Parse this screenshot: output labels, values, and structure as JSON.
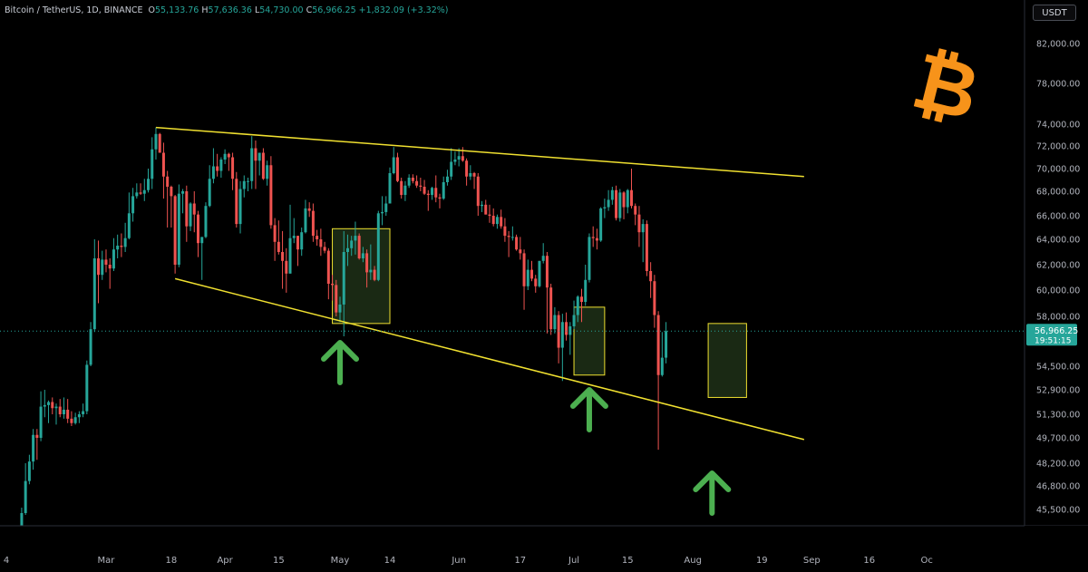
{
  "header": {
    "symbol": "Bitcoin / TetherUS",
    "interval": "1D",
    "exchange": "BINANCE",
    "open_label": "O",
    "open": "55,133.76",
    "high_label": "H",
    "high": "57,636.36",
    "low_label": "L",
    "low": "54,730.00",
    "close_label": "C",
    "close": "56,966.25",
    "change": "+1,832.09 (+3.32%)"
  },
  "unit_button": "USDT",
  "price_tag": {
    "price": "56,966.25",
    "countdown": "19:51:15"
  },
  "colors": {
    "background": "#000000",
    "up": "#26a69a",
    "down": "#ef5350",
    "trendline": "#f0e030",
    "zone_fill": "#1f3018",
    "arrow": "#4caf50",
    "bitcoin": "#f7931a",
    "price_line": "#26a69a"
  },
  "icons": {
    "arrow": "arrow-up-icon",
    "logo": "bitcoin-logo-icon"
  },
  "chart_data": {
    "type": "candlestick",
    "title": "Bitcoin / TetherUS, 1D, BINANCE",
    "y_ticks": [
      82000,
      78000,
      74000,
      72000,
      70000,
      68000,
      66000,
      64000,
      62000,
      60000,
      58000,
      54500,
      52900,
      51300,
      49700,
      48200,
      46800,
      45500
    ],
    "y_tick_labels": [
      "82,000.00",
      "78,000.00",
      "74,000.00",
      "72,000.00",
      "70,000.00",
      "68,000.00",
      "66,000.00",
      "64,000.00",
      "62,000.00",
      "60,000.00",
      "58,000.00",
      "54,500.00",
      "52,900.00",
      "51,300.00",
      "49,700.00",
      "48,200.00",
      "46,800.00",
      "45,500.00"
    ],
    "x_ticks": [
      {
        "label": "4",
        "date": "2024-02-04"
      },
      {
        "label": "Mar",
        "date": "2024-03-01"
      },
      {
        "label": "18",
        "date": "2024-03-18"
      },
      {
        "label": "Apr",
        "date": "2024-04-01"
      },
      {
        "label": "15",
        "date": "2024-04-15"
      },
      {
        "label": "May",
        "date": "2024-05-01"
      },
      {
        "label": "14",
        "date": "2024-05-14"
      },
      {
        "label": "Jun",
        "date": "2024-06-01"
      },
      {
        "label": "17",
        "date": "2024-06-17"
      },
      {
        "label": "Jul",
        "date": "2024-07-01"
      },
      {
        "label": "15",
        "date": "2024-07-15"
      },
      {
        "label": "Aug",
        "date": "2024-08-01"
      },
      {
        "label": "19",
        "date": "2024-08-19"
      },
      {
        "label": "Sep",
        "date": "2024-09-01"
      },
      {
        "label": "16",
        "date": "2024-09-16"
      },
      {
        "label": "Oc",
        "date": "2024-10-01"
      }
    ],
    "first_date": "2024-02-08",
    "candles": [
      [
        44200,
        45600,
        44100,
        45300
      ],
      [
        45300,
        48200,
        45200,
        47100
      ],
      [
        47100,
        48700,
        46900,
        48300
      ],
      [
        48300,
        50300,
        47800,
        49900
      ],
      [
        49900,
        50300,
        48400,
        49700
      ],
      [
        49700,
        52800,
        49500,
        51800
      ],
      [
        51800,
        52900,
        51100,
        51900
      ],
      [
        51900,
        52200,
        50700,
        52100
      ],
      [
        52100,
        52400,
        51300,
        51700
      ],
      [
        51700,
        52000,
        50600,
        51800
      ],
      [
        51800,
        52300,
        51100,
        51300
      ],
      [
        51300,
        52400,
        51000,
        51600
      ],
      [
        51600,
        52300,
        50700,
        51000
      ],
      [
        51000,
        51500,
        50500,
        50700
      ],
      [
        50700,
        51400,
        50600,
        51100
      ],
      [
        51100,
        51500,
        50700,
        51300
      ],
      [
        51300,
        52000,
        51100,
        51500
      ],
      [
        51500,
        54900,
        51300,
        54600
      ],
      [
        54600,
        57600,
        54500,
        57100
      ],
      [
        57100,
        64000,
        56900,
        62500
      ],
      [
        62500,
        63900,
        59000,
        61200
      ],
      [
        61200,
        63100,
        60800,
        62400
      ],
      [
        62400,
        63200,
        61400,
        62000
      ],
      [
        62000,
        62500,
        60100,
        61700
      ],
      [
        61700,
        64100,
        61500,
        63200
      ],
      [
        63200,
        64400,
        62500,
        63500
      ],
      [
        63500,
        64500,
        62600,
        63400
      ],
      [
        63400,
        65400,
        63000,
        64100
      ],
      [
        64100,
        67900,
        64000,
        66200
      ],
      [
        66200,
        68300,
        65500,
        67600
      ],
      [
        67600,
        68700,
        67400,
        67900
      ],
      [
        67900,
        68700,
        67700,
        67800
      ],
      [
        67800,
        69100,
        67200,
        68100
      ],
      [
        68100,
        70000,
        67900,
        69100
      ],
      [
        69100,
        72800,
        68200,
        71700
      ],
      [
        71700,
        73700,
        70800,
        73100
      ],
      [
        73100,
        73200,
        71400,
        71400
      ],
      [
        71400,
        72300,
        67400,
        69300
      ],
      [
        69300,
        69800,
        65000,
        68400
      ],
      [
        68400,
        68500,
        65000,
        67600
      ],
      [
        67600,
        67700,
        61300,
        62000
      ],
      [
        62000,
        68600,
        61800,
        67800
      ],
      [
        67800,
        68200,
        66200,
        68000
      ],
      [
        68000,
        68500,
        63800,
        65100
      ],
      [
        65100,
        67100,
        64700,
        67000
      ],
      [
        67000,
        68000,
        64600,
        66100
      ],
      [
        66100,
        66400,
        62600,
        63700
      ],
      [
        63700,
        64200,
        60800,
        64200
      ],
      [
        64200,
        67100,
        64100,
        66800
      ],
      [
        66800,
        70300,
        66700,
        69100
      ],
      [
        69100,
        71800,
        68700,
        70200
      ],
      [
        70200,
        71300,
        69300,
        69800
      ],
      [
        69800,
        71000,
        69200,
        70800
      ],
      [
        70800,
        71700,
        70400,
        71300
      ],
      [
        71300,
        71400,
        69800,
        71000
      ],
      [
        71000,
        71400,
        68100,
        69100
      ],
      [
        69100,
        69700,
        65000,
        65300
      ],
      [
        65300,
        68900,
        64500,
        68200
      ],
      [
        68200,
        69400,
        67500,
        68900
      ],
      [
        68900,
        69200,
        68000,
        68900
      ],
      [
        68900,
        72900,
        68200,
        71800
      ],
      [
        71800,
        72500,
        68200,
        70700
      ],
      [
        70700,
        71200,
        69400,
        71400
      ],
      [
        71400,
        71800,
        69000,
        69100
      ],
      [
        69100,
        70700,
        68500,
        70300
      ],
      [
        70300,
        71100,
        64900,
        65200
      ],
      [
        65200,
        65800,
        62300,
        63800
      ],
      [
        63800,
        65600,
        62800,
        63000
      ],
      [
        63000,
        64700,
        60100,
        62300
      ],
      [
        62300,
        63300,
        59800,
        61300
      ],
      [
        61300,
        66900,
        61300,
        64100
      ],
      [
        64100,
        65800,
        63700,
        64300
      ],
      [
        64300,
        64300,
        61900,
        63200
      ],
      [
        63200,
        65000,
        62700,
        64600
      ],
      [
        64600,
        67300,
        64500,
        66600
      ],
      [
        66600,
        67100,
        65900,
        66400
      ],
      [
        66400,
        67000,
        63800,
        64300
      ],
      [
        64300,
        64800,
        63500,
        64000
      ],
      [
        64000,
        64900,
        62700,
        63400
      ],
      [
        63400,
        63800,
        62900,
        63100
      ],
      [
        63100,
        63300,
        59300,
        60500
      ],
      [
        60500,
        61200,
        59200,
        60400
      ],
      [
        60400,
        60800,
        58000,
        58300
      ],
      [
        58300,
        59500,
        57600,
        58900
      ],
      [
        58900,
        64700,
        56600,
        63000
      ],
      [
        63000,
        64400,
        61900,
        63300
      ],
      [
        63300,
        64300,
        62700,
        63900
      ],
      [
        63900,
        65500,
        62800,
        64300
      ],
      [
        64300,
        64500,
        62400,
        62500
      ],
      [
        62500,
        63400,
        62200,
        62900
      ],
      [
        62900,
        63200,
        60200,
        61400
      ],
      [
        61400,
        63600,
        60800,
        61600
      ],
      [
        61600,
        61900,
        60700,
        60800
      ],
      [
        60800,
        66400,
        60700,
        66200
      ],
      [
        66200,
        67600,
        65200,
        66300
      ],
      [
        66300,
        67600,
        66000,
        67000
      ],
      [
        67000,
        70100,
        67000,
        69600
      ],
      [
        69600,
        71900,
        69500,
        71000
      ],
      [
        71000,
        71400,
        68800,
        68900
      ],
      [
        68900,
        69200,
        67400,
        67700
      ],
      [
        67700,
        68900,
        67200,
        68500
      ],
      [
        68500,
        69500,
        68300,
        69200
      ],
      [
        69200,
        69500,
        68700,
        68900
      ],
      [
        68900,
        69400,
        68300,
        68500
      ],
      [
        68500,
        69200,
        68000,
        68400
      ],
      [
        68400,
        69000,
        67700,
        67800
      ],
      [
        67800,
        68100,
        66400,
        67700
      ],
      [
        67700,
        68400,
        67300,
        68300
      ],
      [
        68300,
        69400,
        67100,
        67500
      ],
      [
        67500,
        67800,
        66600,
        67400
      ],
      [
        67400,
        69300,
        67300,
        68800
      ],
      [
        68800,
        69900,
        68500,
        69300
      ],
      [
        69300,
        71800,
        69000,
        70600
      ],
      [
        70600,
        71500,
        70300,
        70800
      ],
      [
        70800,
        71800,
        70200,
        71100
      ],
      [
        71100,
        71900,
        70600,
        70700
      ],
      [
        70700,
        70900,
        68500,
        69300
      ],
      [
        69300,
        70300,
        69000,
        69600
      ],
      [
        69600,
        69700,
        68200,
        69300
      ],
      [
        69300,
        69600,
        66000,
        66800
      ],
      [
        66800,
        67200,
        66300,
        66900
      ],
      [
        66900,
        67300,
        66100,
        66100
      ],
      [
        66100,
        66900,
        65400,
        66000
      ],
      [
        66000,
        66600,
        65100,
        65300
      ],
      [
        65300,
        66100,
        64900,
        65900
      ],
      [
        65900,
        66500,
        64900,
        65100
      ],
      [
        65100,
        65800,
        63800,
        64300
      ],
      [
        64300,
        64700,
        62600,
        64200
      ],
      [
        64200,
        65100,
        63900,
        64200
      ],
      [
        64200,
        64400,
        63100,
        63200
      ],
      [
        63200,
        64200,
        62400,
        62900
      ],
      [
        62900,
        63200,
        58500,
        60300
      ],
      [
        60300,
        62400,
        60000,
        61600
      ],
      [
        61600,
        62300,
        60700,
        60900
      ],
      [
        60900,
        61200,
        59800,
        60300
      ],
      [
        60300,
        62300,
        60200,
        62300
      ],
      [
        62300,
        63700,
        62100,
        62700
      ],
      [
        62700,
        63000,
        56800,
        60200
      ],
      [
        60200,
        60500,
        56700,
        57100
      ],
      [
        57100,
        58700,
        56800,
        58100
      ],
      [
        58100,
        58400,
        54700,
        55800
      ],
      [
        55800,
        58200,
        53500,
        57600
      ],
      [
        57600,
        58300,
        56300,
        56700
      ],
      [
        56700,
        57600,
        55300,
        57300
      ],
      [
        57300,
        59200,
        57100,
        58100
      ],
      [
        58100,
        59600,
        57600,
        59500
      ],
      [
        59500,
        60100,
        57600,
        59100
      ],
      [
        59100,
        62000,
        58800,
        60800
      ],
      [
        60800,
        64500,
        60600,
        64200
      ],
      [
        64200,
        65100,
        63400,
        64100
      ],
      [
        64100,
        64900,
        63200,
        63900
      ],
      [
        63900,
        66700,
        63800,
        66600
      ],
      [
        66600,
        67400,
        65800,
        66700
      ],
      [
        66700,
        68100,
        66400,
        67300
      ],
      [
        67300,
        68400,
        66900,
        68100
      ],
      [
        68100,
        68500,
        65600,
        65800
      ],
      [
        65800,
        68200,
        65500,
        67900
      ],
      [
        67900,
        68000,
        65700,
        66700
      ],
      [
        66700,
        68200,
        66200,
        68100
      ],
      [
        68100,
        70000,
        66600,
        66800
      ],
      [
        66800,
        67000,
        65200,
        66100
      ],
      [
        66100,
        66800,
        63400,
        64600
      ],
      [
        64600,
        65700,
        62200,
        65300
      ],
      [
        65300,
        65600,
        61100,
        61500
      ],
      [
        61500,
        62200,
        59400,
        60700
      ],
      [
        60700,
        61200,
        57200,
        58100
      ],
      [
        58100,
        58400,
        49000,
        53900
      ],
      [
        53900,
        56900,
        53800,
        55100
      ],
      [
        55100,
        57600,
        54700,
        56966.25
      ]
    ],
    "trendlines": [
      {
        "name": "upper",
        "from": {
          "date": "2024-03-14",
          "price": 73700
        },
        "to": {
          "date": "2024-08-30",
          "price": 69300
        }
      },
      {
        "name": "lower",
        "from": {
          "date": "2024-03-19",
          "price": 60900
        },
        "to": {
          "date": "2024-08-30",
          "price": 49600
        }
      }
    ],
    "zones": [
      {
        "from": "2024-04-29",
        "to": "2024-05-14",
        "high": 64900,
        "low": 57500
      },
      {
        "from": "2024-07-01",
        "to": "2024-07-09",
        "high": 58700,
        "low": 53900
      },
      {
        "from": "2024-08-05",
        "to": "2024-08-15",
        "high": 57500,
        "low": 52400
      }
    ],
    "arrows": [
      {
        "date": "2024-05-01"
      },
      {
        "date": "2024-07-05"
      },
      {
        "date": "2024-08-06"
      }
    ],
    "last_price": 56966.25
  }
}
